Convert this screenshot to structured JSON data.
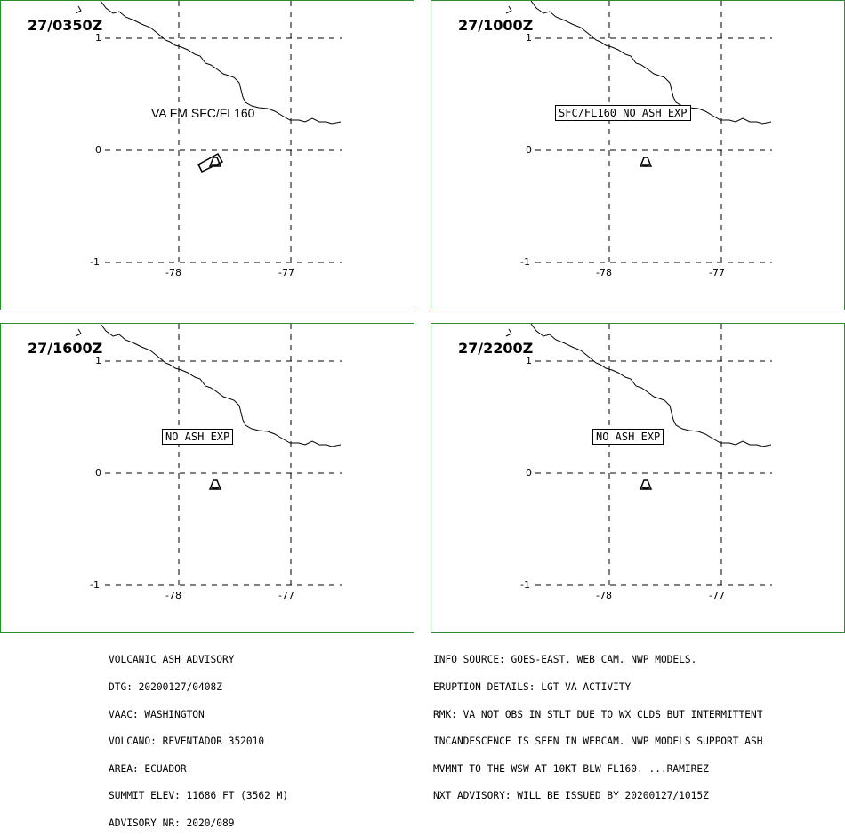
{
  "panels": [
    {
      "time": "27/0350Z",
      "label": "VA FM SFC/FL160",
      "label_boxed": false,
      "ash_polygon": true
    },
    {
      "time": "27/1000Z",
      "label": "SFC/FL160 NO ASH EXP",
      "label_boxed": true,
      "ash_polygon": false
    },
    {
      "time": "27/1600Z",
      "label": "NO ASH EXP",
      "label_boxed": true,
      "ash_polygon": false
    },
    {
      "time": "27/2200Z",
      "label": "NO ASH EXP",
      "label_boxed": true,
      "ash_polygon": false
    }
  ],
  "axis_labels": {
    "lat": [
      "1",
      "0",
      "-1"
    ],
    "lon": [
      "-78",
      "-77"
    ]
  },
  "volcano_symbol": "volcano-triangle-icon",
  "colors": {
    "panel_border": "#2e8b2e",
    "lines": "#000000"
  },
  "advisory_left": [
    "VOLCANIC ASH ADVISORY",
    "DTG: 20200127/0408Z",
    "VAAC: WASHINGTON",
    "VOLCANO: REVENTADOR 352010",
    "AREA: ECUADOR",
    "SUMMIT ELEV: 11686 FT (3562 M)",
    "ADVISORY NR: 2020/089"
  ],
  "advisory_right": [
    "INFO SOURCE: GOES-EAST. WEB CAM. NWP MODELS.",
    "ERUPTION DETAILS: LGT VA ACTIVITY",
    "RMK: VA NOT OBS IN STLT DUE TO WX CLDS BUT INTERMITTENT",
    "INCANDESCENCE IS SEEN IN WEBCAM. NWP MODELS SUPPORT ASH",
    "MVMNT TO THE WSW AT 10KT BLW FL160. ...RAMIREZ",
    "NXT ADVISORY: WILL BE ISSUED BY 20200127/1015Z"
  ]
}
